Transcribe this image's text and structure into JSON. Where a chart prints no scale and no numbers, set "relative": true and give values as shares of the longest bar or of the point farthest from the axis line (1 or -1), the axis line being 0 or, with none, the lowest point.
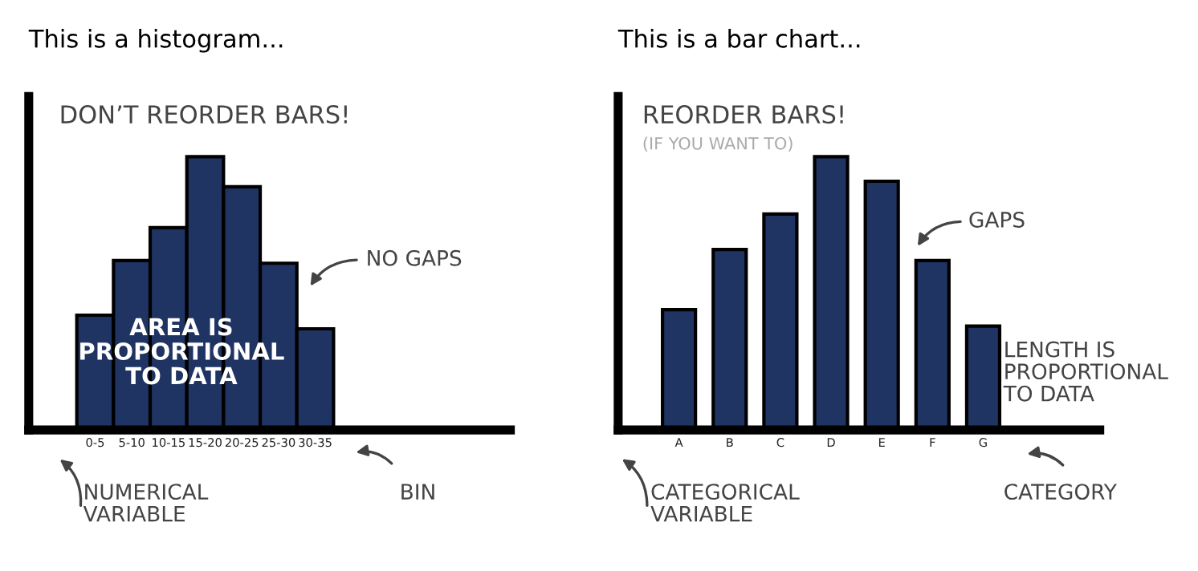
{
  "chart_data": [
    {
      "type": "bar",
      "title": "This is a histogram...",
      "relative": true,
      "color": "#1f3462",
      "categories": [
        "0-5",
        "5-10",
        "10-15",
        "15-20",
        "20-25",
        "25-30",
        "30-35"
      ],
      "values": [
        0.42,
        0.62,
        0.74,
        1,
        0.89,
        0.61,
        0.37
      ],
      "tick_labels": "x",
      "annotations": [
        "DON’T REORDER BARS!",
        "NO GAPS",
        "AREA IS\nPROPORTIONAL\nTO DATA",
        "BIN",
        "NUMERICAL\nVARIABLE"
      ]
    },
    {
      "type": "bar",
      "title": "This is a bar chart...",
      "relative": true,
      "color": "#1f3462",
      "categories": [
        "A",
        "B",
        "C",
        "D",
        "E",
        "F",
        "G"
      ],
      "values": [
        0.44,
        0.66,
        0.79,
        1,
        0.91,
        0.62,
        0.38
      ],
      "tick_labels": "x",
      "annotations": [
        "REORDER BARS!",
        "(IF YOU WANT TO)",
        "GAPS",
        "LENGTH IS\nPROPORTIONAL\nTO DATA",
        "CATEGORY",
        "CATEGORICAL\nVARIABLE"
      ]
    }
  ]
}
